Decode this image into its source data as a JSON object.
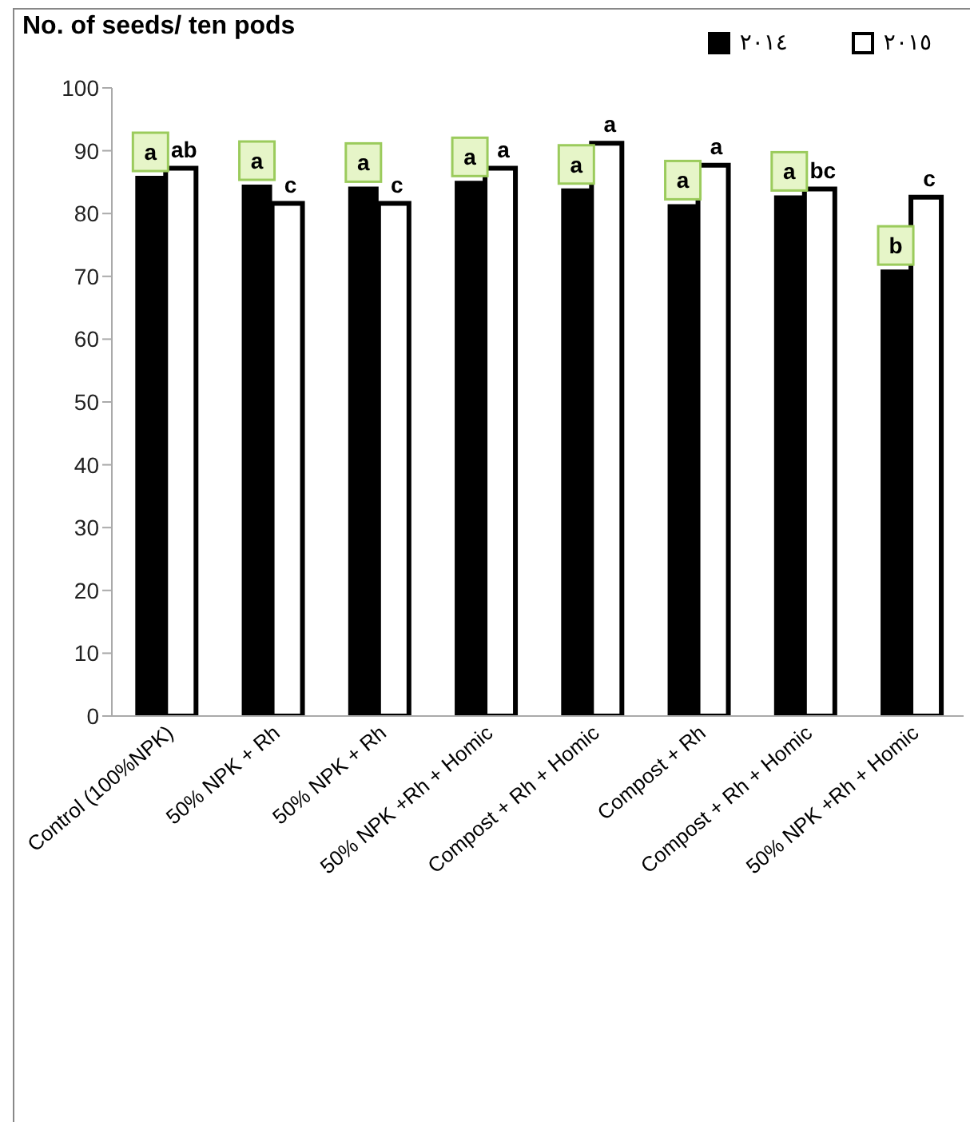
{
  "chart_data": {
    "type": "bar",
    "title": "No. of seeds/ ten pods",
    "categories": [
      "Control (100%NPK)",
      "50% NPK + Rh",
      "50% NPK + Rh",
      "50% NPK +Rh + Homic",
      "Compost + Rh + Homic",
      "Compost + Rh",
      "Compost + Rh + Homic",
      "50% NPK +Rh + Homic"
    ],
    "series": [
      {
        "name": "٢٠١٤",
        "color": "#000000",
        "values": [
          86.0,
          84.6,
          84.3,
          85.2,
          84.0,
          81.5,
          82.9,
          71.1
        ],
        "value_labels": [
          "a",
          "a",
          "a",
          "a",
          "a",
          "a",
          "a",
          "b"
        ]
      },
      {
        "name": "٢٠١٥",
        "color": "#ffffff",
        "values": [
          87.2,
          81.6,
          81.6,
          87.2,
          91.2,
          87.7,
          83.9,
          82.6
        ],
        "value_labels": [
          "ab",
          "c",
          "c",
          "a",
          "a",
          "a",
          "bc",
          "c"
        ]
      }
    ],
    "ylim": [
      0,
      100
    ],
    "yticks": [
      0,
      10,
      20,
      30,
      40,
      50,
      60,
      70,
      80,
      90,
      100
    ],
    "grid": false,
    "legend": "top right"
  }
}
